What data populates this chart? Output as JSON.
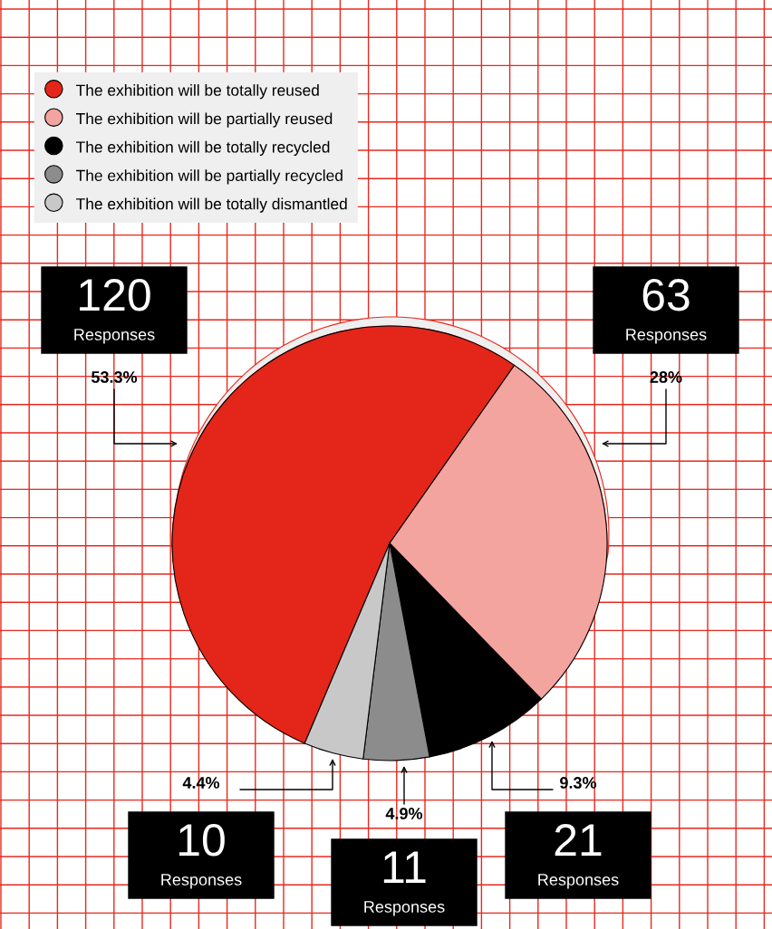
{
  "chart_data": {
    "type": "pie",
    "categories": [
      "The exhibition will be totally reused",
      "The exhibition will be partially reused",
      "The exhibition will be totally recycled",
      "The exhibition will be partially recycled",
      "The exhibition will be totally dismantled"
    ],
    "values": [
      120,
      63,
      21,
      11,
      10
    ],
    "colors": [
      "#e32619",
      "#f3a49e",
      "#000000",
      "#8c8c8c",
      "#c8c8c8"
    ],
    "data_labels": true,
    "annotations": [
      "53.3%",
      "28%",
      "9.3%",
      "4.9%",
      "4.4%",
      "Responses",
      "Responses",
      "Responses",
      "Responses",
      "Responses"
    ],
    "legend": "top left"
  }
}
